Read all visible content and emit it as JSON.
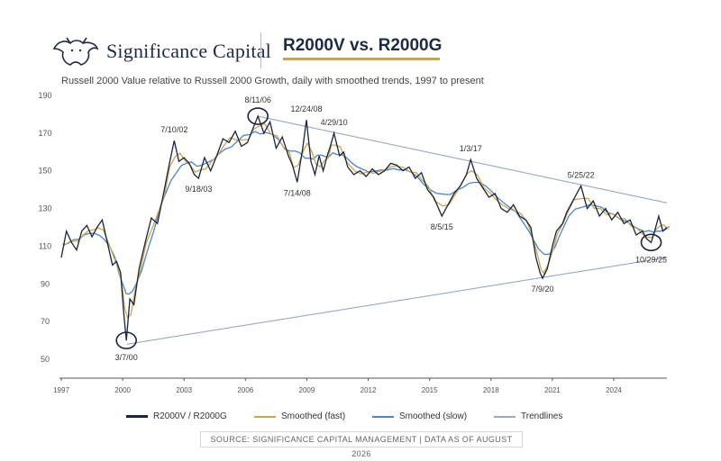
{
  "header": {
    "brand": "Significance Capital",
    "title": "R2000V vs. R2000G",
    "subtitle": "Russell 2000 Value relative to Russell 2000 Growth, daily with smoothed trends, 1997 to present"
  },
  "logo_icon": "bull-bear-logo-icon",
  "colors": {
    "ratio": "#1a2440",
    "fast": "#c9a84c",
    "slow": "#4a86c8",
    "trend": "#9aa8c0",
    "title_rule": "#c9a84c"
  },
  "legend": {
    "ratio": "R2000V / R2000G",
    "fast": "Smoothed (fast)",
    "slow": "Smoothed (slow)",
    "trend": "Trendlines"
  },
  "source": "SOURCE: SIGNIFICANCE CAPITAL MANAGEMENT  |  DATA AS OF AUGUST 2026",
  "chart_data": {
    "type": "line",
    "xlabel": "",
    "ylabel": "",
    "xlim": [
      1997.0,
      2026.6
    ],
    "ylim": [
      40,
      190
    ],
    "x_ticks": [
      "1997",
      "2000",
      "2003",
      "2006",
      "2009",
      "2012",
      "2015",
      "2018",
      "2021",
      "2024"
    ],
    "x_tick_values": [
      1997,
      2000,
      2003,
      2006,
      2009,
      2012,
      2015,
      2018,
      2021,
      2024
    ],
    "y_ticks": [
      50,
      70,
      90,
      110,
      130,
      150,
      170,
      190
    ],
    "grid": false,
    "legend_position": "bottom",
    "series": [
      {
        "name": "R2000V / R2000G",
        "points": [
          [
            1997.0,
            104
          ],
          [
            1997.25,
            118
          ],
          [
            1997.5,
            112
          ],
          [
            1997.75,
            108
          ],
          [
            1998.0,
            118
          ],
          [
            1998.25,
            121
          ],
          [
            1998.5,
            115
          ],
          [
            1998.75,
            120
          ],
          [
            1999.0,
            124
          ],
          [
            1999.25,
            112
          ],
          [
            1999.5,
            100
          ],
          [
            1999.7,
            102
          ],
          [
            1999.9,
            96
          ],
          [
            2000.05,
            75
          ],
          [
            2000.18,
            60
          ],
          [
            2000.35,
            82
          ],
          [
            2000.55,
            79
          ],
          [
            2000.8,
            98
          ],
          [
            2001.1,
            112
          ],
          [
            2001.4,
            125
          ],
          [
            2001.7,
            122
          ],
          [
            2002.0,
            138
          ],
          [
            2002.25,
            152
          ],
          [
            2002.52,
            166
          ],
          [
            2002.75,
            155
          ],
          [
            2003.0,
            157
          ],
          [
            2003.25,
            154
          ],
          [
            2003.5,
            148
          ],
          [
            2003.71,
            146
          ],
          [
            2004.0,
            157
          ],
          [
            2004.3,
            150
          ],
          [
            2004.6,
            158
          ],
          [
            2004.9,
            167
          ],
          [
            2005.2,
            165
          ],
          [
            2005.5,
            171
          ],
          [
            2005.8,
            163
          ],
          [
            2006.1,
            165
          ],
          [
            2006.35,
            172
          ],
          [
            2006.61,
            179
          ],
          [
            2006.9,
            170
          ],
          [
            2007.2,
            176
          ],
          [
            2007.5,
            162
          ],
          [
            2007.8,
            168
          ],
          [
            2008.1,
            158
          ],
          [
            2008.3,
            153
          ],
          [
            2008.53,
            144
          ],
          [
            2008.8,
            162
          ],
          [
            2008.98,
            177
          ],
          [
            2009.2,
            155
          ],
          [
            2009.4,
            148
          ],
          [
            2009.6,
            158
          ],
          [
            2009.8,
            150
          ],
          [
            2010.0,
            158
          ],
          [
            2010.15,
            163
          ],
          [
            2010.33,
            170
          ],
          [
            2010.6,
            158
          ],
          [
            2010.8,
            160
          ],
          [
            2011.0,
            152
          ],
          [
            2011.3,
            148
          ],
          [
            2011.6,
            150
          ],
          [
            2011.9,
            147
          ],
          [
            2012.2,
            151
          ],
          [
            2012.5,
            148
          ],
          [
            2012.8,
            150
          ],
          [
            2013.1,
            154
          ],
          [
            2013.4,
            153
          ],
          [
            2013.7,
            150
          ],
          [
            2014.0,
            152
          ],
          [
            2014.3,
            146
          ],
          [
            2014.6,
            149
          ],
          [
            2014.9,
            140
          ],
          [
            2015.2,
            136
          ],
          [
            2015.6,
            126
          ],
          [
            2015.9,
            132
          ],
          [
            2016.2,
            138
          ],
          [
            2016.5,
            142
          ],
          [
            2016.8,
            148
          ],
          [
            2017.01,
            156
          ],
          [
            2017.3,
            146
          ],
          [
            2017.6,
            141
          ],
          [
            2017.9,
            136
          ],
          [
            2018.2,
            138
          ],
          [
            2018.5,
            130
          ],
          [
            2018.8,
            128
          ],
          [
            2019.1,
            132
          ],
          [
            2019.4,
            126
          ],
          [
            2019.7,
            124
          ],
          [
            2019.95,
            120
          ],
          [
            2020.2,
            104
          ],
          [
            2020.4,
            96
          ],
          [
            2020.52,
            93
          ],
          [
            2020.75,
            98
          ],
          [
            2021.0,
            110
          ],
          [
            2021.2,
            118
          ],
          [
            2021.5,
            122
          ],
          [
            2021.7,
            128
          ],
          [
            2022.0,
            134
          ],
          [
            2022.4,
            142
          ],
          [
            2022.7,
            130
          ],
          [
            2023.0,
            134
          ],
          [
            2023.3,
            126
          ],
          [
            2023.6,
            130
          ],
          [
            2023.9,
            124
          ],
          [
            2024.2,
            128
          ],
          [
            2024.5,
            122
          ],
          [
            2024.8,
            124
          ],
          [
            2025.1,
            116
          ],
          [
            2025.4,
            118
          ],
          [
            2025.6,
            114
          ],
          [
            2025.83,
            112
          ],
          [
            2026.0,
            118
          ],
          [
            2026.2,
            126
          ],
          [
            2026.4,
            118
          ],
          [
            2026.6,
            120
          ]
        ]
      },
      {
        "name": "Smoothed (fast)",
        "smoothing_window": 3
      },
      {
        "name": "Smoothed (slow)",
        "smoothing_window": 7
      },
      {
        "name": "Trendlines",
        "lines": [
          [
            [
              2000.2,
              58
            ],
            [
              2026.6,
              104
            ]
          ],
          [
            [
              2006.6,
              179
            ],
            [
              2026.6,
              133
            ]
          ]
        ]
      }
    ],
    "annotations": [
      {
        "label": "3/7/00",
        "x": 2000.18,
        "y": 60,
        "circle": true,
        "label_pos": "below"
      },
      {
        "label": "8/11/06",
        "x": 2006.61,
        "y": 179,
        "circle": true,
        "label_pos": "above"
      },
      {
        "label": "10/29/25",
        "x": 2025.83,
        "y": 112,
        "circle": true,
        "label_pos": "below"
      },
      {
        "label": "7/10/02",
        "x": 2002.52,
        "y": 166,
        "label_pos": "above"
      },
      {
        "label": "9/18/03",
        "x": 2003.71,
        "y": 146,
        "label_pos": "below"
      },
      {
        "label": "12/24/08",
        "x": 2008.98,
        "y": 177,
        "label_pos": "above"
      },
      {
        "label": "7/14/08",
        "x": 2008.53,
        "y": 144,
        "label_pos": "below"
      },
      {
        "label": "4/29/10",
        "x": 2010.33,
        "y": 170,
        "label_pos": "above"
      },
      {
        "label": "1/3/17",
        "x": 2017.01,
        "y": 156,
        "label_pos": "above"
      },
      {
        "label": "8/5/15",
        "x": 2015.6,
        "y": 126,
        "label_pos": "below"
      },
      {
        "label": "5/25/22",
        "x": 2022.4,
        "y": 142,
        "label_pos": "above"
      },
      {
        "label": "7/9/20",
        "x": 2020.52,
        "y": 93,
        "label_pos": "below"
      }
    ]
  }
}
